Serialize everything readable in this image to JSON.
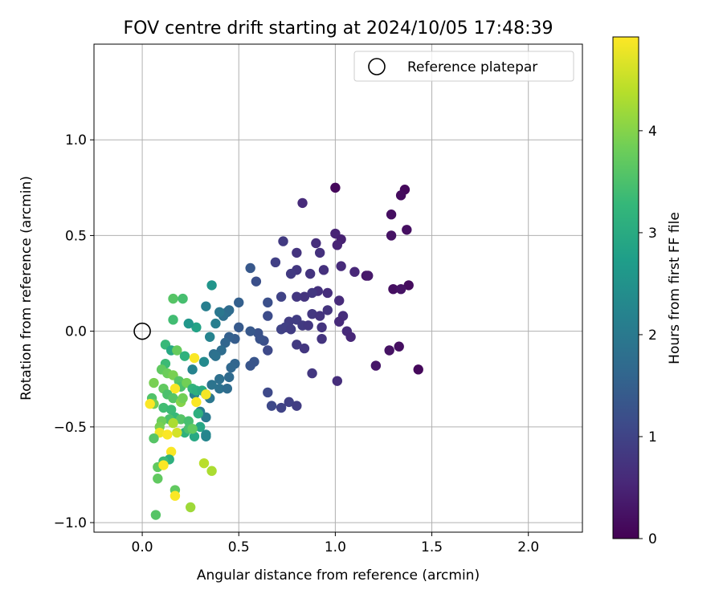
{
  "chart_data": {
    "type": "scatter",
    "title": "FOV centre drift starting at 2024/10/05 17:48:39",
    "xlabel": "Angular distance from reference (arcmin)",
    "ylabel": "Rotation from reference (arcmin)",
    "xlim": [
      -0.25,
      2.28
    ],
    "ylim": [
      -1.05,
      1.5
    ],
    "xticks": [
      0.0,
      0.5,
      1.0,
      1.5,
      2.0
    ],
    "xtick_labels": [
      "0.0",
      "0.5",
      "1.0",
      "1.5",
      "2.0"
    ],
    "yticks": [
      -1.0,
      -0.5,
      0.0,
      0.5,
      1.0
    ],
    "ytick_labels": [
      "−1.0",
      "−0.5",
      "0.0",
      "0.5",
      "1.0"
    ],
    "grid": true,
    "legend": {
      "position": "top-right",
      "entries": [
        "Reference platepar"
      ]
    },
    "reference_point": {
      "label": "Reference platepar",
      "x": 0.0,
      "y": 0.0,
      "marker": "open-circle"
    },
    "colorbar": {
      "label": "Hours from first FF file",
      "colormap": "viridis",
      "range": [
        0,
        4.92
      ],
      "ticks": [
        0,
        1,
        2,
        3,
        4
      ],
      "tick_labels": [
        "0",
        "1",
        "2",
        "3",
        "4"
      ],
      "stops": [
        "#440154",
        "#482878",
        "#3e4989",
        "#31688e",
        "#26828e",
        "#1f9e89",
        "#35b779",
        "#6ece58",
        "#b5de2b",
        "#fde725"
      ]
    },
    "points": [
      [
        1.0,
        0.75,
        0.1
      ],
      [
        1.36,
        0.74,
        0.1
      ],
      [
        1.34,
        0.71,
        0.15
      ],
      [
        0.83,
        0.67,
        0.6
      ],
      [
        1.29,
        0.61,
        0.2
      ],
      [
        1.37,
        0.53,
        0.2
      ],
      [
        1.29,
        0.5,
        0.25
      ],
      [
        1.0,
        0.51,
        0.5
      ],
      [
        1.03,
        0.48,
        0.45
      ],
      [
        1.01,
        0.45,
        0.5
      ],
      [
        0.9,
        0.46,
        0.65
      ],
      [
        0.73,
        0.47,
        0.85
      ],
      [
        0.92,
        0.41,
        0.7
      ],
      [
        0.8,
        0.41,
        0.75
      ],
      [
        1.03,
        0.34,
        0.6
      ],
      [
        1.1,
        0.31,
        0.55
      ],
      [
        0.94,
        0.32,
        0.7
      ],
      [
        0.8,
        0.32,
        0.8
      ],
      [
        0.77,
        0.3,
        0.85
      ],
      [
        0.87,
        0.3,
        0.75
      ],
      [
        0.69,
        0.36,
        0.95
      ],
      [
        0.56,
        0.33,
        1.35
      ],
      [
        0.59,
        0.26,
        1.2
      ],
      [
        1.16,
        0.29,
        0.3
      ],
      [
        1.17,
        0.29,
        0.35
      ],
      [
        1.38,
        0.24,
        0.15
      ],
      [
        1.3,
        0.22,
        0.2
      ],
      [
        1.34,
        0.22,
        0.25
      ],
      [
        0.91,
        0.21,
        0.7
      ],
      [
        0.88,
        0.2,
        0.8
      ],
      [
        0.84,
        0.18,
        0.75
      ],
      [
        0.8,
        0.18,
        0.8
      ],
      [
        0.72,
        0.18,
        1.0
      ],
      [
        0.65,
        0.15,
        1.2
      ],
      [
        0.96,
        0.2,
        0.65
      ],
      [
        1.02,
        0.16,
        0.6
      ],
      [
        0.96,
        0.11,
        0.75
      ],
      [
        0.88,
        0.09,
        0.8
      ],
      [
        0.92,
        0.08,
        0.75
      ],
      [
        1.04,
        0.08,
        0.65
      ],
      [
        1.02,
        0.05,
        0.6
      ],
      [
        0.8,
        0.06,
        0.9
      ],
      [
        0.76,
        0.05,
        0.9
      ],
      [
        0.65,
        0.08,
        1.15
      ],
      [
        0.83,
        0.03,
        0.85
      ],
      [
        0.86,
        0.03,
        0.8
      ],
      [
        0.93,
        0.02,
        0.75
      ],
      [
        0.72,
        0.01,
        1.0
      ],
      [
        0.74,
        0.02,
        0.95
      ],
      [
        0.77,
        0.01,
        0.9
      ],
      [
        1.06,
        0.0,
        0.6
      ],
      [
        1.08,
        -0.03,
        0.55
      ],
      [
        0.93,
        -0.04,
        0.75
      ],
      [
        0.8,
        -0.07,
        0.85
      ],
      [
        0.84,
        -0.09,
        0.8
      ],
      [
        0.65,
        -0.1,
        1.1
      ],
      [
        0.63,
        -0.05,
        1.2
      ],
      [
        0.6,
        -0.01,
        1.25
      ],
      [
        0.56,
        0.0,
        1.35
      ],
      [
        0.5,
        0.02,
        1.4
      ],
      [
        0.5,
        0.15,
        1.5
      ],
      [
        0.45,
        0.11,
        1.7
      ],
      [
        0.44,
        0.1,
        1.75
      ],
      [
        0.42,
        0.08,
        1.8
      ],
      [
        1.28,
        -0.1,
        0.25
      ],
      [
        1.33,
        -0.08,
        0.2
      ],
      [
        1.21,
        -0.18,
        0.3
      ],
      [
        1.43,
        -0.2,
        0.1
      ],
      [
        0.88,
        -0.22,
        0.8
      ],
      [
        1.01,
        -0.26,
        0.65
      ],
      [
        0.65,
        -0.32,
        1.1
      ],
      [
        0.67,
        -0.39,
        1.1
      ],
      [
        0.72,
        -0.4,
        1.0
      ],
      [
        0.76,
        -0.37,
        0.95
      ],
      [
        0.8,
        -0.39,
        0.9
      ],
      [
        0.58,
        -0.16,
        1.3
      ],
      [
        0.56,
        -0.18,
        1.3
      ],
      [
        0.61,
        -0.04,
        1.25
      ],
      [
        0.48,
        -0.04,
        1.45
      ],
      [
        0.45,
        -0.03,
        1.5
      ],
      [
        0.43,
        -0.06,
        1.6
      ],
      [
        0.41,
        -0.1,
        1.75
      ],
      [
        0.37,
        -0.12,
        1.8
      ],
      [
        0.38,
        -0.13,
        1.85
      ],
      [
        0.48,
        -0.17,
        1.6
      ],
      [
        0.46,
        -0.19,
        1.65
      ],
      [
        0.45,
        -0.24,
        1.7
      ],
      [
        0.4,
        -0.25,
        1.8
      ],
      [
        0.4,
        -0.3,
        1.85
      ],
      [
        0.44,
        -0.3,
        1.75
      ],
      [
        0.36,
        -0.28,
        1.9
      ],
      [
        0.33,
        -0.33,
        2.0
      ],
      [
        0.35,
        -0.35,
        1.95
      ],
      [
        0.3,
        -0.42,
        2.05
      ],
      [
        0.33,
        -0.45,
        2.0
      ],
      [
        0.27,
        -0.33,
        2.15
      ],
      [
        0.26,
        -0.2,
        2.2
      ],
      [
        0.32,
        -0.16,
        2.35
      ],
      [
        0.35,
        -0.03,
        2.2
      ],
      [
        0.38,
        0.04,
        2.1
      ],
      [
        0.4,
        0.1,
        1.95
      ],
      [
        0.33,
        0.13,
        2.1
      ],
      [
        0.36,
        0.24,
        2.55
      ],
      [
        0.28,
        0.02,
        2.85
      ],
      [
        0.24,
        0.04,
        2.6
      ],
      [
        0.16,
        0.06,
        3.4
      ],
      [
        0.16,
        0.17,
        3.6
      ],
      [
        0.21,
        0.17,
        3.45
      ],
      [
        0.12,
        -0.07,
        3.3
      ],
      [
        0.15,
        -0.1,
        2.95
      ],
      [
        0.18,
        -0.1,
        3.75
      ],
      [
        0.22,
        -0.13,
        3.15
      ],
      [
        0.27,
        -0.14,
        4.9
      ],
      [
        0.12,
        -0.17,
        3.35
      ],
      [
        0.1,
        -0.2,
        3.7
      ],
      [
        0.13,
        -0.22,
        3.8
      ],
      [
        0.16,
        -0.23,
        3.9
      ],
      [
        0.19,
        -0.26,
        3.6
      ],
      [
        0.2,
        -0.29,
        3.5
      ],
      [
        0.23,
        -0.27,
        3.85
      ],
      [
        0.26,
        -0.3,
        3.2
      ],
      [
        0.28,
        -0.31,
        3.1
      ],
      [
        0.31,
        -0.31,
        3.0
      ],
      [
        0.33,
        -0.33,
        4.85
      ],
      [
        0.06,
        -0.27,
        3.9
      ],
      [
        0.11,
        -0.3,
        3.7
      ],
      [
        0.17,
        -0.3,
        4.9
      ],
      [
        0.13,
        -0.33,
        3.5
      ],
      [
        0.16,
        -0.35,
        3.6
      ],
      [
        0.05,
        -0.35,
        3.55
      ],
      [
        0.06,
        -0.38,
        3.85
      ],
      [
        0.04,
        -0.38,
        4.9
      ],
      [
        0.11,
        -0.4,
        3.4
      ],
      [
        0.15,
        -0.41,
        3.35
      ],
      [
        0.2,
        -0.37,
        4.0
      ],
      [
        0.21,
        -0.35,
        3.85
      ],
      [
        0.28,
        -0.37,
        4.9
      ],
      [
        0.17,
        -0.45,
        3.3
      ],
      [
        0.14,
        -0.46,
        3.5
      ],
      [
        0.2,
        -0.46,
        3.6
      ],
      [
        0.24,
        -0.47,
        3.45
      ],
      [
        0.3,
        -0.5,
        2.9
      ],
      [
        0.29,
        -0.43,
        3.1
      ],
      [
        0.27,
        -0.55,
        2.95
      ],
      [
        0.22,
        -0.53,
        3.15
      ],
      [
        0.33,
        -0.54,
        2.3
      ],
      [
        0.33,
        -0.55,
        2.25
      ],
      [
        0.24,
        -0.51,
        3.5
      ],
      [
        0.26,
        -0.51,
        3.7
      ],
      [
        0.1,
        -0.47,
        3.8
      ],
      [
        0.09,
        -0.5,
        3.9
      ],
      [
        0.09,
        -0.53,
        4.8
      ],
      [
        0.13,
        -0.54,
        4.9
      ],
      [
        0.16,
        -0.48,
        4.3
      ],
      [
        0.18,
        -0.53,
        4.6
      ],
      [
        0.06,
        -0.56,
        3.6
      ],
      [
        0.15,
        -0.63,
        4.9
      ],
      [
        0.14,
        -0.67,
        3.1
      ],
      [
        0.11,
        -0.68,
        3.35
      ],
      [
        0.08,
        -0.71,
        3.7
      ],
      [
        0.11,
        -0.7,
        4.9
      ],
      [
        0.32,
        -0.69,
        4.4
      ],
      [
        0.36,
        -0.73,
        4.3
      ],
      [
        0.08,
        -0.77,
        3.7
      ],
      [
        0.17,
        -0.83,
        3.7
      ],
      [
        0.17,
        -0.86,
        4.9
      ],
      [
        0.07,
        -0.96,
        3.6
      ],
      [
        0.25,
        -0.92,
        4.2
      ]
    ]
  }
}
